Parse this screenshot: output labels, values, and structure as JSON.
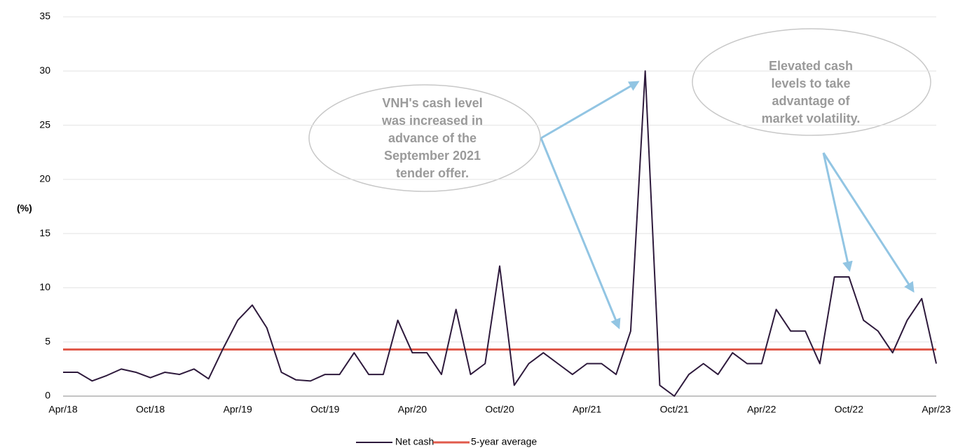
{
  "chart_data": {
    "type": "line",
    "ylabel": "(%)",
    "categories": [
      "Apr/18",
      null,
      null,
      null,
      null,
      null,
      "Oct/18",
      null,
      null,
      null,
      null,
      null,
      "Apr/19",
      null,
      null,
      null,
      null,
      null,
      "Oct/19",
      null,
      null,
      null,
      null,
      null,
      "Apr/20",
      null,
      null,
      null,
      null,
      null,
      "Oct/20",
      null,
      null,
      null,
      null,
      null,
      "Apr/21",
      null,
      null,
      null,
      null,
      null,
      "Oct/21",
      null,
      null,
      null,
      null,
      null,
      "Apr/22",
      null,
      null,
      null,
      null,
      null,
      "Oct/22",
      null,
      null,
      null,
      null,
      null,
      "Apr/23"
    ],
    "series": [
      {
        "name": "Net cash",
        "color": "#2e1a3c",
        "values": [
          2.2,
          2.2,
          1.4,
          1.9,
          2.5,
          2.2,
          1.7,
          2.2,
          2.0,
          2.5,
          1.6,
          4.4,
          7.0,
          8.4,
          6.3,
          2.2,
          1.5,
          1.4,
          2.0,
          2.0,
          4.0,
          2.0,
          2.0,
          7.0,
          4.0,
          4.0,
          2.0,
          8.0,
          2.0,
          3.0,
          12.0,
          1.0,
          3.0,
          4.0,
          3.0,
          2.0,
          3.0,
          3.0,
          2.0,
          6.0,
          30.0,
          1.0,
          0.0,
          2.0,
          3.0,
          2.0,
          4.0,
          3.0,
          3.0,
          8.0,
          6.0,
          6.0,
          3.0,
          11.0,
          11.0,
          7.0,
          6.0,
          4.0,
          7.0,
          9.0,
          3.0
        ]
      }
    ],
    "reference_line": {
      "name": "5-year average",
      "color": "#e05a4b",
      "value": 4.3
    },
    "ylim": [
      0,
      35
    ],
    "yticks": [
      0,
      5,
      10,
      15,
      20,
      25,
      30,
      35
    ],
    "grid": true,
    "annotations": [
      {
        "lines": [
          "VNH's cash level",
          "was increased in",
          "advance of the",
          "September 2021",
          "tender offer."
        ]
      },
      {
        "lines": [
          "Elevated cash",
          "levels to take",
          "advantage of",
          "market volatility."
        ]
      }
    ]
  }
}
